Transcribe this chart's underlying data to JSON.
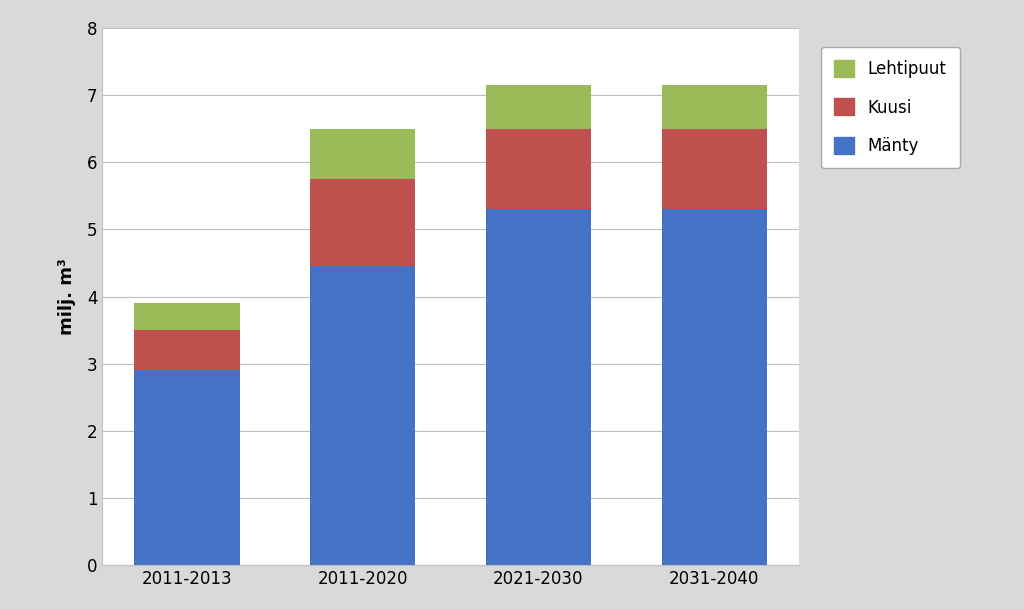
{
  "categories": [
    "2011-2013",
    "2011-2020",
    "2021-2030",
    "2031-2040"
  ],
  "manty": [
    2.9,
    4.45,
    5.3,
    5.3
  ],
  "kuusi": [
    0.6,
    1.3,
    1.2,
    1.2
  ],
  "lehtipuut": [
    0.4,
    0.75,
    0.65,
    0.65
  ],
  "color_manty": "#4472C4",
  "color_kuusi": "#C0504D",
  "color_lehtipuut": "#9BBB59",
  "ylabel": "milj. m³",
  "ylim": [
    0,
    8
  ],
  "yticks": [
    0,
    1,
    2,
    3,
    4,
    5,
    6,
    7,
    8
  ],
  "outer_background": "#D9D9D9",
  "plot_background": "#FFFFFF",
  "bar_width": 0.6,
  "legend_labels": [
    "Lehtipuut",
    "Kuusi",
    "Mänty"
  ],
  "grid_color": "#C0C0C0",
  "label_fontsize": 13,
  "tick_fontsize": 12,
  "legend_fontsize": 12
}
